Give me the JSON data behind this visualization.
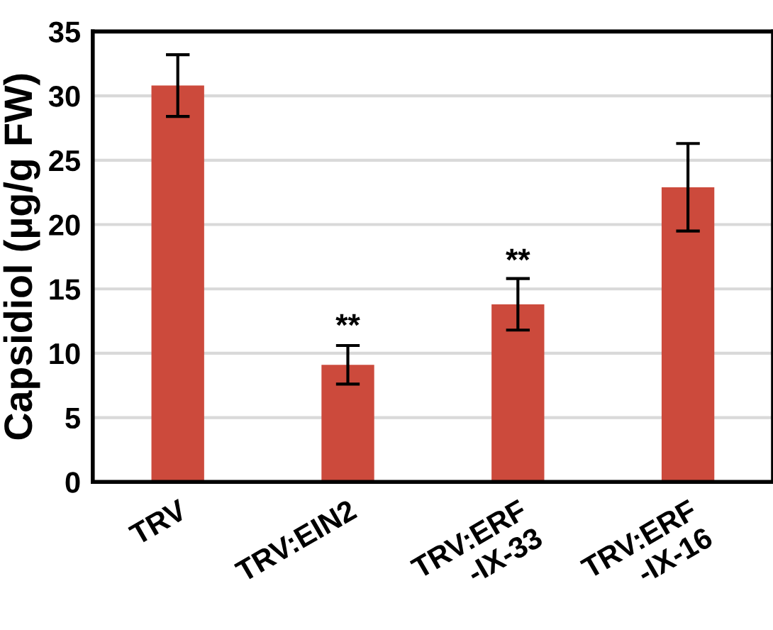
{
  "chart_data": {
    "type": "bar",
    "ylabel": "Capsidiol (µg/g FW)",
    "categories": [
      "TRV",
      "TRV:EIN2",
      "TRV:ERF\n-IX-33",
      "TRV:ERF\n-IX-16"
    ],
    "values": [
      30.8,
      9.1,
      13.8,
      22.9
    ],
    "errors": [
      2.4,
      1.5,
      2.0,
      3.4
    ],
    "color": "#cc4a3c",
    "ylim": [
      0,
      35
    ],
    "yticks": [
      0,
      5,
      10,
      15,
      20,
      25,
      30,
      35
    ],
    "grid": "y",
    "annotations": [
      "**",
      "**"
    ]
  }
}
